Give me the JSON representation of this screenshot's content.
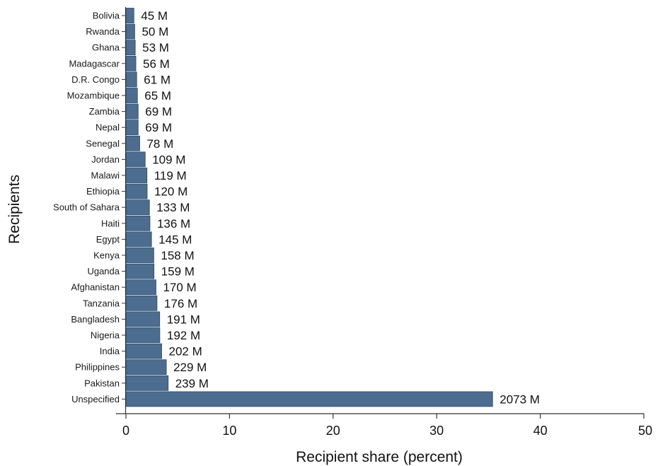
{
  "chart_data": {
    "type": "bar",
    "orientation": "horizontal",
    "xlabel": "Recipient share (percent)",
    "ylabel": "Recipients",
    "xlim": [
      0,
      50
    ],
    "xticks": [
      0,
      10,
      20,
      30,
      40,
      50
    ],
    "grid": false,
    "bar_color": "#4c6d8f",
    "bar_edge_color": "#2e4a66",
    "categories": [
      "Bolivia",
      "Rwanda",
      "Ghana",
      "Madagascar",
      "D.R. Congo",
      "Mozambique",
      "Zambia",
      "Nepal",
      "Senegal",
      "Jordan",
      "Malawi",
      "Ethiopia",
      "South of Sahara",
      "Haiti",
      "Egypt",
      "Kenya",
      "Uganda",
      "Afghanistan",
      "Tanzania",
      "Bangladesh",
      "Nigeria",
      "India",
      "Philippines",
      "Pakistan",
      "Unspecified"
    ],
    "values": [
      0.77,
      0.85,
      0.9,
      0.96,
      1.04,
      1.11,
      1.18,
      1.18,
      1.33,
      1.86,
      2.03,
      2.05,
      2.27,
      2.32,
      2.47,
      2.69,
      2.71,
      2.9,
      3.0,
      3.26,
      3.27,
      3.45,
      3.9,
      4.08,
      35.4
    ],
    "data_labels": [
      "45 M",
      "50 M",
      "53 M",
      "56 M",
      "61 M",
      "65 M",
      "69 M",
      "69 M",
      "78 M",
      "109 M",
      "119 M",
      "120 M",
      "133 M",
      "136 M",
      "145 M",
      "158 M",
      "159 M",
      "170 M",
      "176 M",
      "191 M",
      "192 M",
      "202 M",
      "229 M",
      "239 M",
      "2073 M"
    ]
  }
}
